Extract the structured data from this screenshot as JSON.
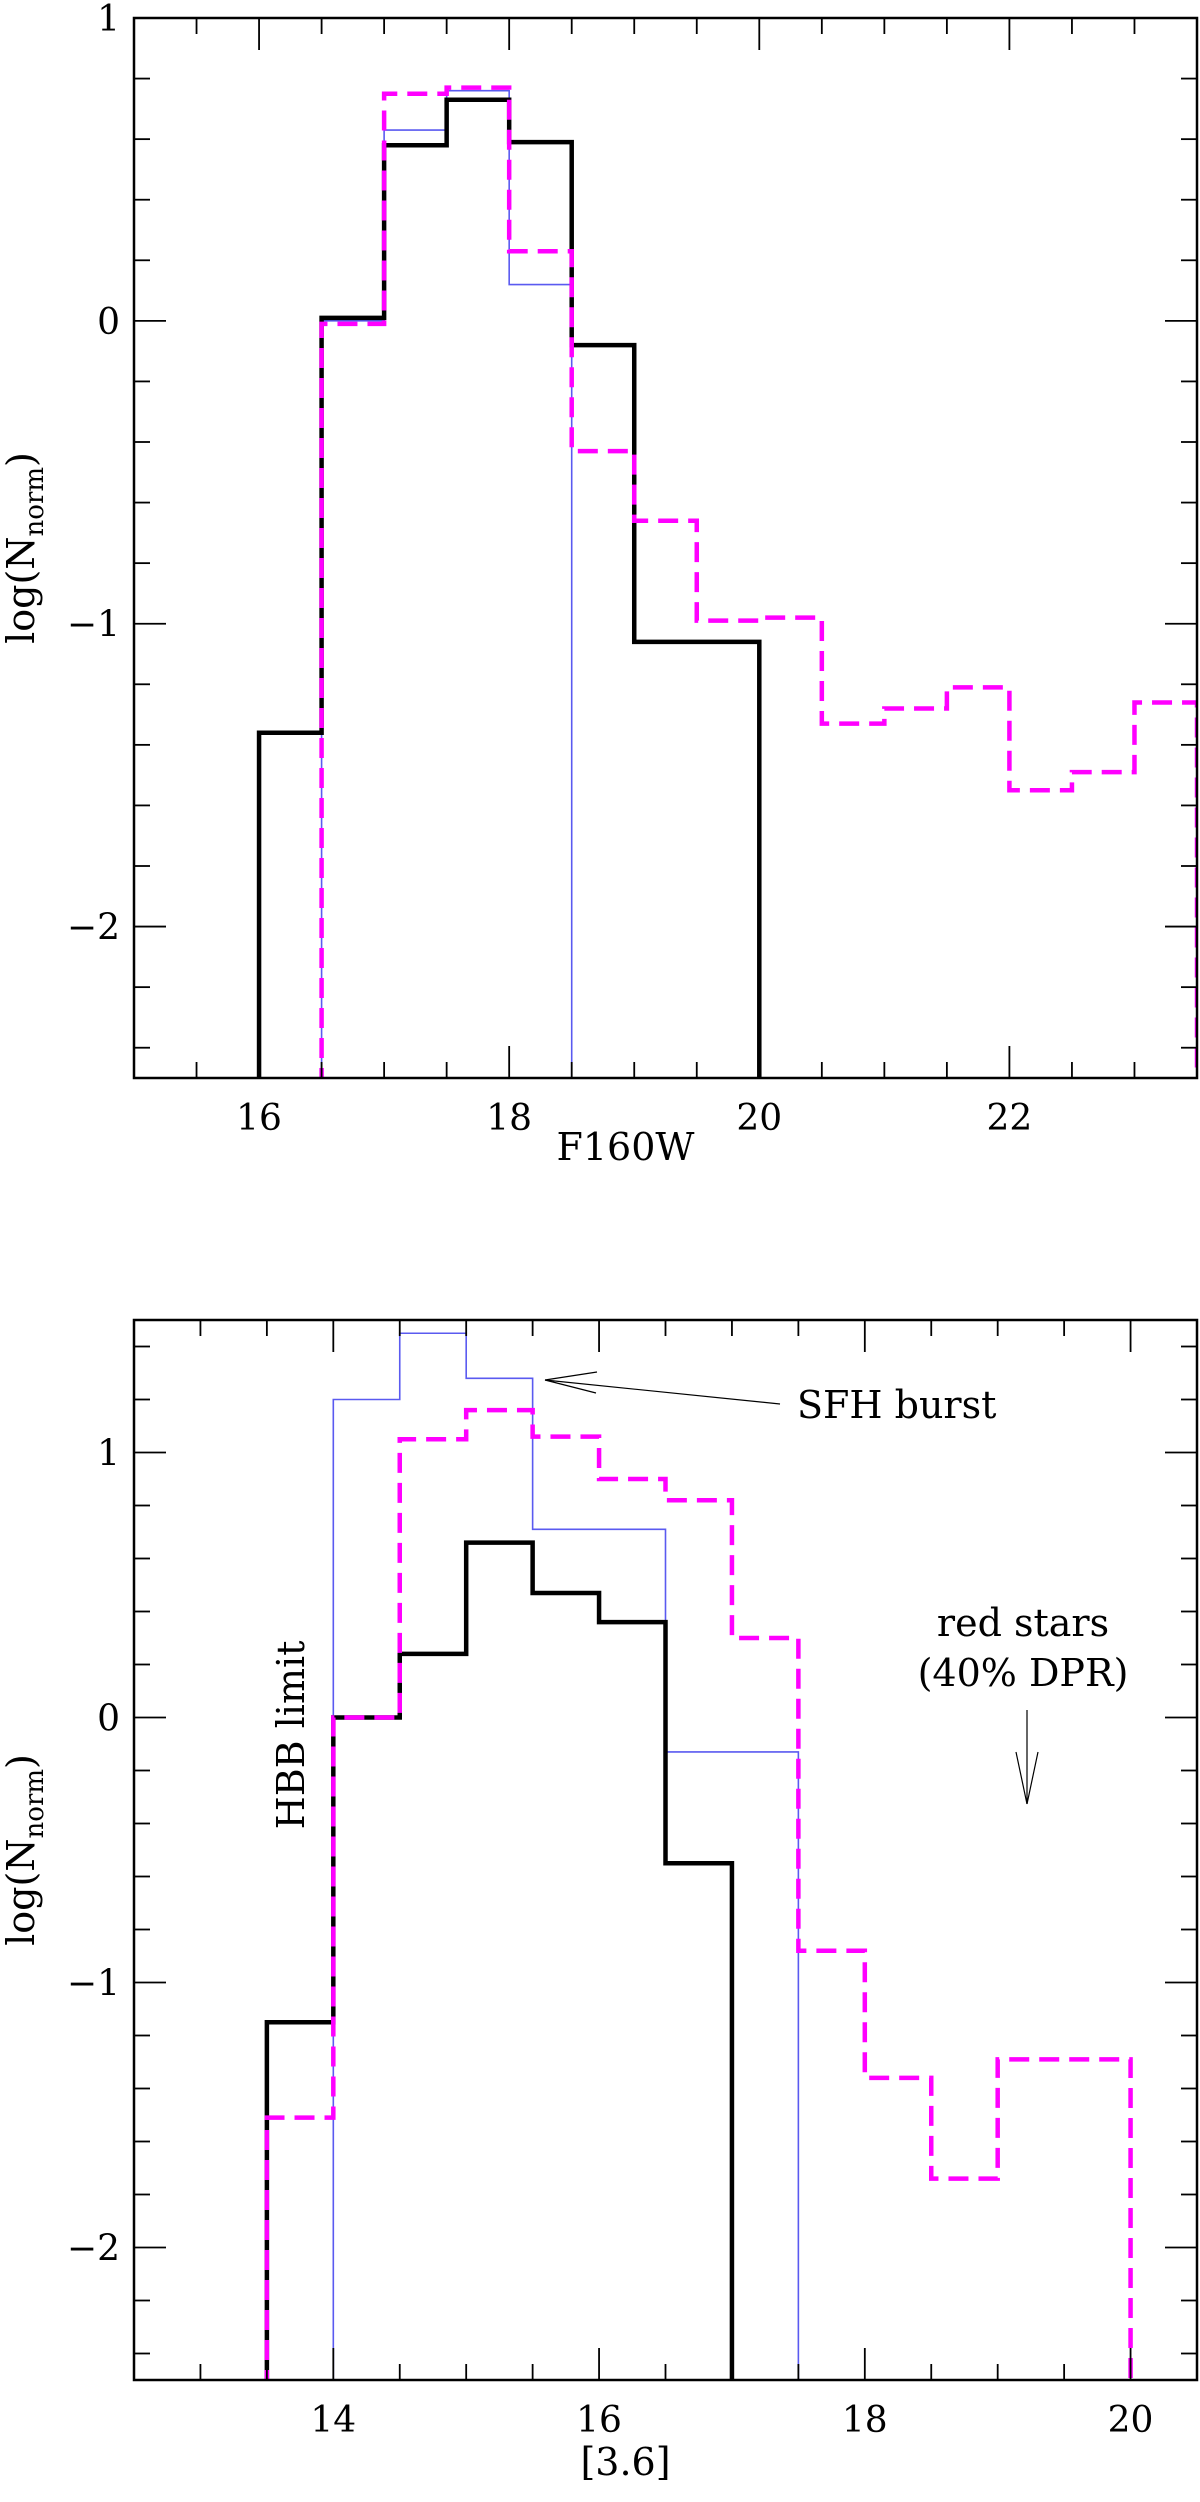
{
  "chart_data": [
    {
      "type": "line",
      "step": true,
      "xlabel": "F160W",
      "ylabel_main": "log(N",
      "ylabel_sub": "norm",
      "ylabel_close": ")",
      "xlim": [
        15.0,
        23.5
      ],
      "ylim": [
        -2.5,
        1.0
      ],
      "xticks_major": [
        16,
        18,
        20,
        22
      ],
      "xtick_labels": [
        "16",
        "18",
        "20",
        "22"
      ],
      "yticks_major": [
        -2,
        -1,
        0,
        1
      ],
      "ytick_labels": [
        "−2",
        "−1",
        "0",
        "1"
      ],
      "x_minor_step": 0.5,
      "y_minor_step": 0.2,
      "grid": false,
      "series": [
        {
          "style": "solid-black",
          "color": "#000000",
          "edges": [
            16.0,
            16.5,
            17.0,
            17.5,
            18.0,
            18.5,
            19.0,
            19.5,
            20.0
          ],
          "values": [
            -1.36,
            0.01,
            0.58,
            0.73,
            0.59,
            -0.08,
            -1.06,
            -1.06
          ]
        },
        {
          "style": "thin-blue",
          "color": "#5a5af0",
          "edges": [
            16.5,
            17.0,
            17.5,
            18.0,
            18.5
          ],
          "values": [
            0.0,
            0.63,
            0.76,
            0.12
          ]
        },
        {
          "style": "dashed-magenta",
          "color": "#ff00ff",
          "edges": [
            16.5,
            17.0,
            17.5,
            18.0,
            18.5,
            19.0,
            19.5,
            20.0,
            20.5,
            21.0,
            21.5,
            22.0,
            22.5,
            23.0,
            23.5
          ],
          "values": [
            -0.01,
            0.75,
            0.77,
            0.23,
            -0.43,
            -0.66,
            -0.99,
            -0.98,
            -1.33,
            -1.28,
            -1.21,
            -1.55,
            -1.49,
            -1.26
          ]
        }
      ]
    },
    {
      "type": "line",
      "step": true,
      "xlabel": "[3.6]",
      "ylabel_main": "log(N",
      "ylabel_sub": "norm",
      "ylabel_close": ")",
      "xlim": [
        12.5,
        20.5
      ],
      "ylim": [
        -2.5,
        1.5
      ],
      "xticks_major": [
        14,
        16,
        18,
        20
      ],
      "xtick_labels": [
        "14",
        "16",
        "18",
        "20"
      ],
      "yticks_major": [
        -2,
        -1,
        0,
        1
      ],
      "ytick_labels": [
        "−2",
        "−1",
        "0",
        "1"
      ],
      "x_minor_step": 0.5,
      "y_minor_step": 0.2,
      "grid": false,
      "series": [
        {
          "style": "solid-black",
          "color": "#000000",
          "edges": [
            13.5,
            14.0,
            14.5,
            15.0,
            15.5,
            16.0,
            16.5,
            17.0
          ],
          "values": [
            -1.15,
            0.0,
            0.24,
            0.66,
            0.47,
            0.36,
            -0.55
          ]
        },
        {
          "style": "thin-blue",
          "color": "#5a5af0",
          "edges": [
            14.0,
            14.5,
            15.0,
            15.5,
            16.0,
            16.5,
            17.0,
            17.5
          ],
          "values": [
            1.2,
            1.45,
            1.28,
            0.71,
            0.71,
            -0.13,
            -0.13
          ]
        },
        {
          "style": "dashed-magenta",
          "color": "#ff00ff",
          "edges": [
            13.5,
            14.0,
            14.5,
            15.0,
            15.5,
            16.0,
            16.5,
            17.0,
            17.5,
            18.0,
            18.5,
            19.0,
            19.5,
            20.0
          ],
          "values": [
            -1.51,
            0.0,
            1.05,
            1.16,
            1.06,
            0.9,
            0.82,
            0.3,
            -0.88,
            -1.36,
            -1.74,
            -1.29,
            -1.29
          ]
        }
      ],
      "annotations": [
        {
          "name": "sfh-burst",
          "text": "SFH burst",
          "lines": [
            "SFH burst"
          ]
        },
        {
          "name": "red-stars",
          "text": "red stars (40% DPR)",
          "lines": [
            "red stars",
            "(40% DPR)"
          ]
        },
        {
          "name": "hbb-limit",
          "text": "HBB limit",
          "lines": [
            "HBB limit"
          ]
        }
      ]
    }
  ]
}
